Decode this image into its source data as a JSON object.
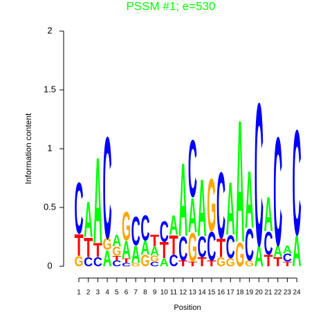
{
  "chart_data": {
    "type": "logo",
    "title": "PSSM #1; e=530",
    "title_color": "#00ff00",
    "xlabel": "Position",
    "ylabel": "Information content",
    "ylim": [
      0,
      2
    ],
    "yticks": [
      0,
      0.5,
      1,
      1.5,
      2
    ],
    "colors": {
      "A": "#00ff00",
      "C": "#0000ff",
      "G": "#ffa500",
      "T": "#ff0000"
    },
    "categories": [
      "1",
      "2",
      "3",
      "4",
      "5",
      "6",
      "7",
      "8",
      "9",
      "10",
      "11",
      "12",
      "13",
      "14",
      "15",
      "16",
      "17",
      "18",
      "19",
      "20",
      "21",
      "22",
      "23",
      "24"
    ],
    "stacks": [
      [
        {
          "letter": "G",
          "value": 0.09
        },
        {
          "letter": "T",
          "value": 0.19
        },
        {
          "letter": "C",
          "value": 0.45
        }
      ],
      [
        {
          "letter": "C",
          "value": 0.08
        },
        {
          "letter": "T",
          "value": 0.17
        },
        {
          "letter": "A",
          "value": 0.31
        }
      ],
      [
        {
          "letter": "C",
          "value": 0.08
        },
        {
          "letter": "T",
          "value": 0.12
        },
        {
          "letter": "A",
          "value": 0.75
        }
      ],
      [
        {
          "letter": "A",
          "value": 0.14
        },
        {
          "letter": "G",
          "value": 0.1
        },
        {
          "letter": "C",
          "value": 0.89
        }
      ],
      [
        {
          "letter": "C",
          "value": 0.05
        },
        {
          "letter": "T",
          "value": 0.04
        },
        {
          "letter": "G",
          "value": 0.08
        },
        {
          "letter": "A",
          "value": 0.1
        }
      ],
      [
        {
          "letter": "C",
          "value": 0.03
        },
        {
          "letter": "T",
          "value": 0.04
        },
        {
          "letter": "A",
          "value": 0.15
        },
        {
          "letter": "G",
          "value": 0.25
        }
      ],
      [
        {
          "letter": "G",
          "value": 0.03
        },
        {
          "letter": "A",
          "value": 0.15
        },
        {
          "letter": "C",
          "value": 0.25
        }
      ],
      [
        {
          "letter": "G",
          "value": 0.1
        },
        {
          "letter": "A",
          "value": 0.12
        },
        {
          "letter": "C",
          "value": 0.22
        }
      ],
      [
        {
          "letter": "C",
          "value": 0.04
        },
        {
          "letter": "G",
          "value": 0.05
        },
        {
          "letter": "A",
          "value": 0.08
        },
        {
          "letter": "T",
          "value": 0.1
        }
      ],
      [
        {
          "letter": "A",
          "value": 0.07
        },
        {
          "letter": "T",
          "value": 0.14
        },
        {
          "letter": "C",
          "value": 0.18
        }
      ],
      [
        {
          "letter": "C",
          "value": 0.1
        },
        {
          "letter": "T",
          "value": 0.17
        },
        {
          "letter": "A",
          "value": 0.17
        }
      ],
      [
        {
          "letter": "T",
          "value": 0.05
        },
        {
          "letter": "C",
          "value": 0.21
        },
        {
          "letter": "A",
          "value": 0.64
        }
      ],
      [
        {
          "letter": "T",
          "value": 0.04
        },
        {
          "letter": "G",
          "value": 0.25
        },
        {
          "letter": "A",
          "value": 0.3
        },
        {
          "letter": "C",
          "value": 0.5
        }
      ],
      [
        {
          "letter": "T",
          "value": 0.08
        },
        {
          "letter": "C",
          "value": 0.18
        },
        {
          "letter": "A",
          "value": 0.5
        }
      ],
      [
        {
          "letter": "T",
          "value": 0.05
        },
        {
          "letter": "C",
          "value": 0.25
        },
        {
          "letter": "G",
          "value": 0.46
        }
      ],
      [
        {
          "letter": "G",
          "value": 0.08
        },
        {
          "letter": "T",
          "value": 0.16
        },
        {
          "letter": "C",
          "value": 0.58
        }
      ],
      [
        {
          "letter": "G",
          "value": 0.07
        },
        {
          "letter": "C",
          "value": 0.2
        },
        {
          "letter": "A",
          "value": 0.46
        }
      ],
      [
        {
          "letter": "G",
          "value": 0.21
        },
        {
          "letter": "A",
          "value": 1.07
        }
      ],
      [
        {
          "letter": "G",
          "value": 0.05
        },
        {
          "letter": "C",
          "value": 0.28
        },
        {
          "letter": "A",
          "value": 0.5
        }
      ],
      [
        {
          "letter": "A",
          "value": 0.18
        },
        {
          "letter": "C",
          "value": 1.25
        }
      ],
      [
        {
          "letter": "T",
          "value": 0.1
        },
        {
          "letter": "C",
          "value": 0.2
        },
        {
          "letter": "A",
          "value": 0.3
        }
      ],
      [
        {
          "letter": "T",
          "value": 0.08
        },
        {
          "letter": "A",
          "value": 0.1
        },
        {
          "letter": "C",
          "value": 0.95
        }
      ],
      [
        {
          "letter": "T",
          "value": 0.04
        },
        {
          "letter": "C",
          "value": 0.07
        },
        {
          "letter": "A",
          "value": 0.07
        }
      ],
      [
        {
          "letter": "A",
          "value": 0.27
        },
        {
          "letter": "C",
          "value": 0.92
        }
      ]
    ]
  }
}
